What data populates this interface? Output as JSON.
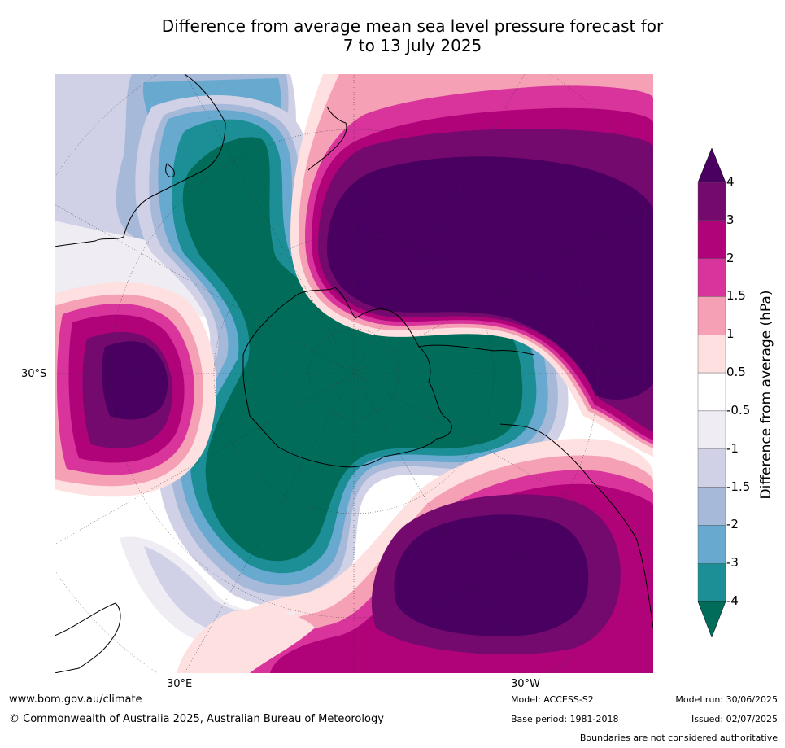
{
  "title": {
    "line1": "Difference from average mean sea level pressure forecast for",
    "line2": "7 to 13 July 2025"
  },
  "map": {
    "lat_label": "30°S",
    "lon_labels": [
      "30°E",
      "30°W"
    ],
    "colors": {
      "land_outline": "#000000",
      "border_outline": "#888888"
    }
  },
  "colorbar": {
    "label": "Difference from average (hPa)",
    "ticks": [
      "4",
      "3",
      "2",
      "1.5",
      "1",
      "0.5",
      "-0.5",
      "-1",
      "-1.5",
      "-2",
      "-3",
      "-4"
    ],
    "colors": [
      "#4a0061",
      "#750a6e",
      "#b0037a",
      "#d9349b",
      "#f5a0b5",
      "#fde0df",
      "#ffffff",
      "#f0ecf3",
      "#d0d1e6",
      "#a7b9d9",
      "#67a9cf",
      "#1c8f96",
      "#016c59"
    ],
    "extend_top": "#4a0061",
    "extend_bottom": "#016c59"
  },
  "footer": {
    "url": "www.bom.gov.au/climate",
    "copyright": "© Commonwealth of Australia 2025, Australian Bureau of Meteorology",
    "model": "Model: ACCESS-S2",
    "base_period": "Base period: 1981-2018",
    "model_run": "Model run: 30/06/2025",
    "issued": "Issued: 02/07/2025",
    "disclaimer": "Boundaries are not considered authoritative"
  }
}
